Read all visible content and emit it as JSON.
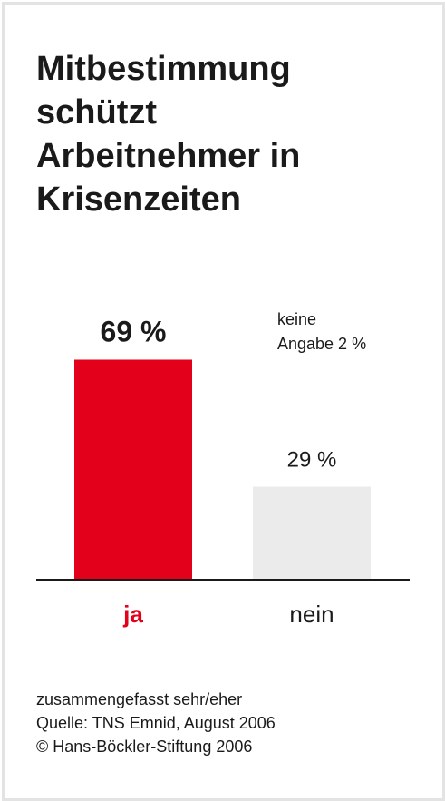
{
  "title_lines": [
    "Mitbestimmung",
    "schützt",
    "Arbeitnehmer in",
    "Krisenzeiten"
  ],
  "chart_data": {
    "type": "bar",
    "categories": [
      "ja",
      "nein"
    ],
    "values": [
      69,
      29
    ],
    "value_labels": [
      "69 %",
      "29 %"
    ],
    "ylim": [
      0,
      100
    ],
    "colors": [
      "#e2001a",
      "#ebebeb"
    ],
    "category_colors": [
      "#e2001a",
      "#1a1a1a"
    ],
    "annotation_lines": [
      "keine",
      "Angabe 2 %"
    ],
    "xlabel": "",
    "ylabel": "",
    "grid": false
  },
  "footer_lines": [
    "zusammengefasst sehr/eher",
    "Quelle: TNS Emnid, August 2006",
    "© Hans-Böckler-Stiftung 2006"
  ]
}
